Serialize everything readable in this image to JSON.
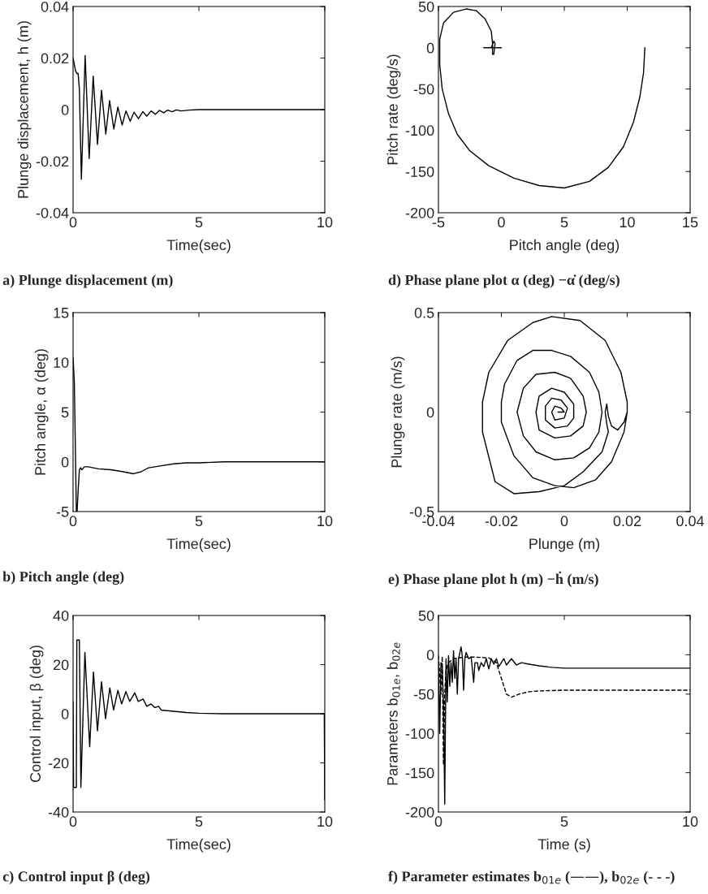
{
  "chart_data": [
    {
      "type": "line",
      "title": "a) Plunge displacement (m)",
      "xlabel": "Time(sec)",
      "ylabel": "Plunge displacement, h (m)",
      "xlim": [
        0,
        10
      ],
      "ylim": [
        -0.04,
        0.04
      ],
      "xticks": [
        0,
        5,
        10
      ],
      "yticks": [
        -0.04,
        -0.02,
        0,
        0.02,
        0.04
      ],
      "grid": false,
      "line_style": "solid",
      "series": [
        {
          "color": "#000000",
          "x": [
            0,
            0.1,
            0.15,
            0.2,
            0.25,
            0.33,
            0.48,
            0.64,
            0.8,
            0.97,
            1.13,
            1.3,
            1.45,
            1.62,
            1.78,
            1.95,
            2.1,
            2.27,
            2.42,
            2.6,
            2.77,
            2.93,
            3.1,
            3.27,
            3.43,
            3.6,
            3.76,
            3.93,
            4.1,
            4.3,
            4.6,
            5,
            10
          ],
          "values": [
            0.02,
            0.015,
            0.014,
            0.014,
            0.008,
            -0.027,
            0.021,
            -0.019,
            0.013,
            -0.0135,
            0.0075,
            -0.0095,
            0.0035,
            -0.0075,
            0.001,
            -0.006,
            -0.0005,
            -0.0045,
            -0.001,
            -0.0035,
            -0.0008,
            -0.0025,
            -0.0005,
            -0.0018,
            -0.0003,
            -0.0012,
            -0.0002,
            -0.0008,
            -0.0001,
            -0.0005,
            -0.0002,
            0,
            0
          ]
        }
      ]
    },
    {
      "type": "line",
      "title": "d) Phase plane plot α (deg) −α̇ (deg/s)",
      "xlabel": "Pitch angle (deg)",
      "ylabel": "Pitch rate (deg/s)",
      "xlim": [
        -5,
        15
      ],
      "ylim": [
        -200,
        50
      ],
      "xticks": [
        -5,
        0,
        5,
        10,
        15
      ],
      "yticks": [
        -200,
        -150,
        -100,
        -50,
        0,
        50
      ],
      "grid": false,
      "line_style": "solid",
      "series": [
        {
          "color": "#000000",
          "x": [
            11.4,
            11.3,
            11,
            10.5,
            9.7,
            8.5,
            7,
            5,
            3,
            1,
            -1,
            -2.5,
            -3.5,
            -4.2,
            -4.7,
            -4.9,
            -4.9,
            -4.6,
            -3.8,
            -2.8,
            -2,
            -1.3,
            -0.8,
            -0.7,
            -0.7,
            -0.6,
            -0.5,
            -0.6,
            -0.8,
            -1.4,
            0,
            -0.7
          ],
          "values": [
            0,
            -30,
            -60,
            -90,
            -120,
            -145,
            -162,
            -170,
            -167,
            -158,
            -143,
            -125,
            -105,
            -80,
            -50,
            -20,
            10,
            30,
            43,
            47,
            45,
            35,
            20,
            5,
            -8,
            -8,
            5,
            8,
            0,
            0,
            0,
            0
          ]
        }
      ]
    },
    {
      "type": "line",
      "title": "b) Pitch angle (deg)",
      "xlabel": "Time(sec)",
      "ylabel": "Pitch angle, α (deg)",
      "xlim": [
        0,
        10
      ],
      "ylim": [
        -5,
        15
      ],
      "xticks": [
        0,
        5,
        10
      ],
      "yticks": [
        -5,
        0,
        5,
        10,
        15
      ],
      "grid": false,
      "line_style": "solid",
      "series": [
        {
          "color": "#000000",
          "x": [
            0,
            0.05,
            0.1,
            0.13,
            0.16,
            0.2,
            0.25,
            0.3,
            0.35,
            0.45,
            0.6,
            0.8,
            1.0,
            1.5,
            2.0,
            2.4,
            2.7,
            3.0,
            3.5,
            4.0,
            4.5,
            5,
            6,
            10
          ],
          "values": [
            10.5,
            8,
            0,
            -5,
            -5,
            -3,
            -0.8,
            -0.6,
            -0.8,
            -0.5,
            -0.5,
            -0.6,
            -0.7,
            -0.8,
            -1.0,
            -1.2,
            -1.0,
            -0.6,
            -0.4,
            -0.2,
            -0.1,
            -0.1,
            0,
            0
          ]
        }
      ]
    },
    {
      "type": "line",
      "title": "e) Phase plane plot h (m) −ḣ (m/s)",
      "xlabel": "Plunge (m)",
      "ylabel": "Plunge rate (m/s)",
      "xlim": [
        -0.04,
        0.04
      ],
      "ylim": [
        -0.5,
        0.5
      ],
      "xticks": [
        -0.04,
        -0.02,
        0,
        0.02,
        0.04
      ],
      "yticks": [
        -0.5,
        0,
        0.5
      ],
      "grid": false,
      "line_style": "solid",
      "series": [
        {
          "color": "#000000",
          "x": [
            0.02,
            0.019,
            0.017,
            0.015,
            0.014,
            0.0135,
            0.013,
            0.0135,
            0.014,
            0.012,
            0.006,
            0.0,
            -0.008,
            -0.016,
            -0.022,
            -0.026,
            -0.026,
            -0.024,
            -0.018,
            -0.01,
            -0.004,
            0.005,
            0.013,
            0.018,
            0.02,
            0.02,
            0.019,
            0.015,
            0.01,
            0.003,
            -0.003,
            -0.01,
            -0.016,
            -0.02,
            -0.02,
            -0.019,
            -0.015,
            -0.01,
            -0.004,
            0.002,
            0.008,
            0.011,
            0.012,
            0.011,
            0.008,
            0.003,
            -0.003,
            -0.009,
            -0.013,
            -0.015,
            -0.013,
            -0.009,
            -0.003,
            0.002,
            0.006,
            0.007,
            0.006,
            0.002,
            -0.003,
            -0.008,
            -0.009,
            -0.008,
            -0.004,
            0,
            0.003,
            0.003,
            0.001,
            -0.003,
            -0.006,
            -0.006,
            -0.004,
            -0.001,
            0.001,
            0,
            -0.003,
            -0.004,
            -0.003,
            -0.001,
            0,
            -0.002
          ],
          "values": [
            0,
            -0.05,
            -0.09,
            -0.07,
            -0.02,
            0.04,
            0.0,
            -0.06,
            -0.1,
            -0.2,
            -0.3,
            -0.37,
            -0.4,
            -0.41,
            -0.35,
            -0.1,
            0.05,
            0.2,
            0.36,
            0.45,
            0.48,
            0.46,
            0.36,
            0.2,
            0.05,
            0,
            -0.1,
            -0.25,
            -0.34,
            -0.38,
            -0.37,
            -0.33,
            -0.22,
            -0.05,
            0.05,
            0.14,
            0.26,
            0.31,
            0.31,
            0.28,
            0.2,
            0.1,
            0,
            -0.1,
            -0.18,
            -0.23,
            -0.24,
            -0.2,
            -0.12,
            0,
            0.12,
            0.19,
            0.2,
            0.17,
            0.08,
            0,
            -0.07,
            -0.12,
            -0.13,
            -0.09,
            0,
            0.08,
            0.12,
            0.1,
            0.04,
            -0.03,
            -0.07,
            -0.08,
            -0.04,
            0.03,
            0.07,
            0.06,
            0.02,
            -0.03,
            -0.04,
            0,
            0.03,
            0.02,
            0,
            0
          ]
        }
      ]
    },
    {
      "type": "line",
      "title": "c) Control input β (deg)",
      "xlabel": "Time(sec)",
      "ylabel": "Control input, β (deg)",
      "xlim": [
        0,
        10
      ],
      "ylim": [
        -40,
        40
      ],
      "xticks": [
        0,
        5,
        10
      ],
      "yticks": [
        -40,
        -20,
        0,
        20,
        40
      ],
      "grid": false,
      "line_style": "solid",
      "series": [
        {
          "color": "#000000",
          "x": [
            0,
            0.02,
            0.13,
            0.15,
            0.25,
            0.31,
            0.47,
            0.66,
            0.81,
            0.97,
            1.13,
            1.29,
            1.46,
            1.61,
            1.78,
            1.93,
            2.1,
            2.25,
            2.45,
            2.59,
            2.78,
            2.93,
            3.1,
            3.25,
            3.4,
            3.5,
            4,
            4.5,
            5,
            6,
            9.98,
            10
          ],
          "values": [
            5,
            -30,
            -30,
            30,
            30,
            -30,
            25,
            -13.5,
            17,
            -7,
            13,
            -2,
            10.5,
            1.5,
            9.5,
            4,
            9,
            5,
            8.5,
            5,
            6,
            3,
            4,
            2.5,
            3,
            1.5,
            1,
            0.5,
            0.2,
            0,
            0,
            -35
          ]
        }
      ]
    },
    {
      "type": "line",
      "title": "f) Parameter estimates b$_{01e}$ (——), b$_{02e}$ (- - -)",
      "xlabel": "Time (s)",
      "ylabel": "Parameters b$_{01e}$, b$_{02e}$",
      "xlim": [
        0,
        10
      ],
      "ylim": [
        -200,
        50
      ],
      "xticks": [
        0,
        5,
        10
      ],
      "yticks": [
        -200,
        -150,
        -100,
        -50,
        0,
        50
      ],
      "grid": false,
      "series": [
        {
          "color": "#000000",
          "line_style": "solid",
          "x": [
            0,
            0.05,
            0.1,
            0.15,
            0.2,
            0.25,
            0.3,
            0.35,
            0.4,
            0.45,
            0.5,
            0.55,
            0.6,
            0.65,
            0.7,
            0.75,
            0.8,
            0.9,
            0.95,
            1.0,
            1.05,
            1.1,
            1.2,
            1.3,
            1.4,
            1.45,
            1.55,
            1.6,
            1.7,
            1.8,
            1.9,
            2.0,
            2.1,
            2.2,
            2.3,
            2.4,
            2.6,
            2.7,
            2.9,
            3.1,
            3.3,
            3.6,
            4,
            4.5,
            5,
            10
          ],
          "values": [
            -10,
            -100,
            -10,
            -15,
            -60,
            -190,
            -5,
            -60,
            -1,
            -40,
            -10,
            -35,
            5,
            -30,
            -5,
            -50,
            -5,
            10,
            -2,
            -45,
            -5,
            3,
            -5,
            -3,
            -35,
            -10,
            -10,
            -20,
            -10,
            -15,
            -5,
            -18,
            -5,
            -12,
            -5,
            -15,
            -5,
            -13,
            -5,
            -13,
            -10,
            -12,
            -14,
            -16,
            -17,
            -17
          ]
        },
        {
          "color": "#000000",
          "line_style": "dashed",
          "x": [
            0,
            0.1,
            0.15,
            0.2,
            0.25,
            0.3,
            0.4,
            0.6,
            1,
            1.5,
            2,
            2.3,
            2.5,
            2.7,
            2.9,
            3.2,
            3.6,
            4,
            5,
            10
          ],
          "values": [
            -1,
            -50,
            -2,
            -140,
            -50,
            -20,
            -10,
            -5,
            -3,
            -3,
            -4,
            -10,
            -30,
            -50,
            -54,
            -50,
            -47,
            -46,
            -45,
            -45
          ]
        }
      ]
    }
  ]
}
